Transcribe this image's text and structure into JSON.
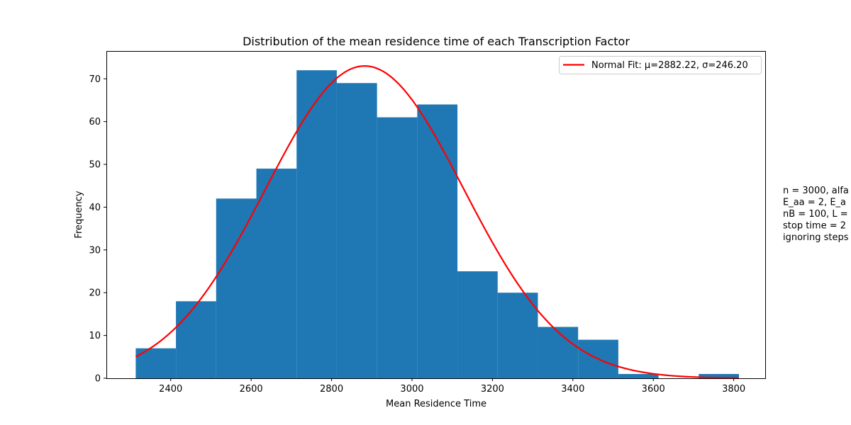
{
  "chart_data": {
    "type": "bar",
    "title": "Distribution of the mean residence time of each Transcription Factor",
    "xlabel": "Mean Residence Time",
    "ylabel": "Frequency",
    "xlim": [
      2240,
      3880
    ],
    "ylim": [
      0,
      76.5
    ],
    "xticks": [
      2400,
      2600,
      2800,
      3000,
      3200,
      3400,
      3600,
      3800
    ],
    "yticks": [
      0,
      10,
      20,
      30,
      40,
      50,
      60,
      70
    ],
    "bin_edges": [
      2313,
      2413,
      2513,
      2613,
      2713,
      2813,
      2913,
      3013,
      3113,
      3213,
      3313,
      3413,
      3513,
      3613,
      3713,
      3813
    ],
    "values": [
      7,
      18,
      42,
      49,
      72,
      69,
      61,
      64,
      25,
      20,
      12,
      9,
      1,
      0,
      1
    ],
    "bar_color": "#1f77b4",
    "series": [
      {
        "name": "Normal Fit: μ=2882.22, σ=246.20",
        "type": "line",
        "color": "#ff0000",
        "mu": 2882.22,
        "sigma": 246.2,
        "peak": 73,
        "x_range": [
          2313,
          3813
        ]
      }
    ],
    "legend": {
      "placement": "top-right"
    },
    "annotation_lines": [
      "n = 3000, alfa",
      "E_aa = 2, E_a",
      "nB = 100, L =",
      "stop time = 2",
      "ignoring steps"
    ],
    "grid": false
  }
}
